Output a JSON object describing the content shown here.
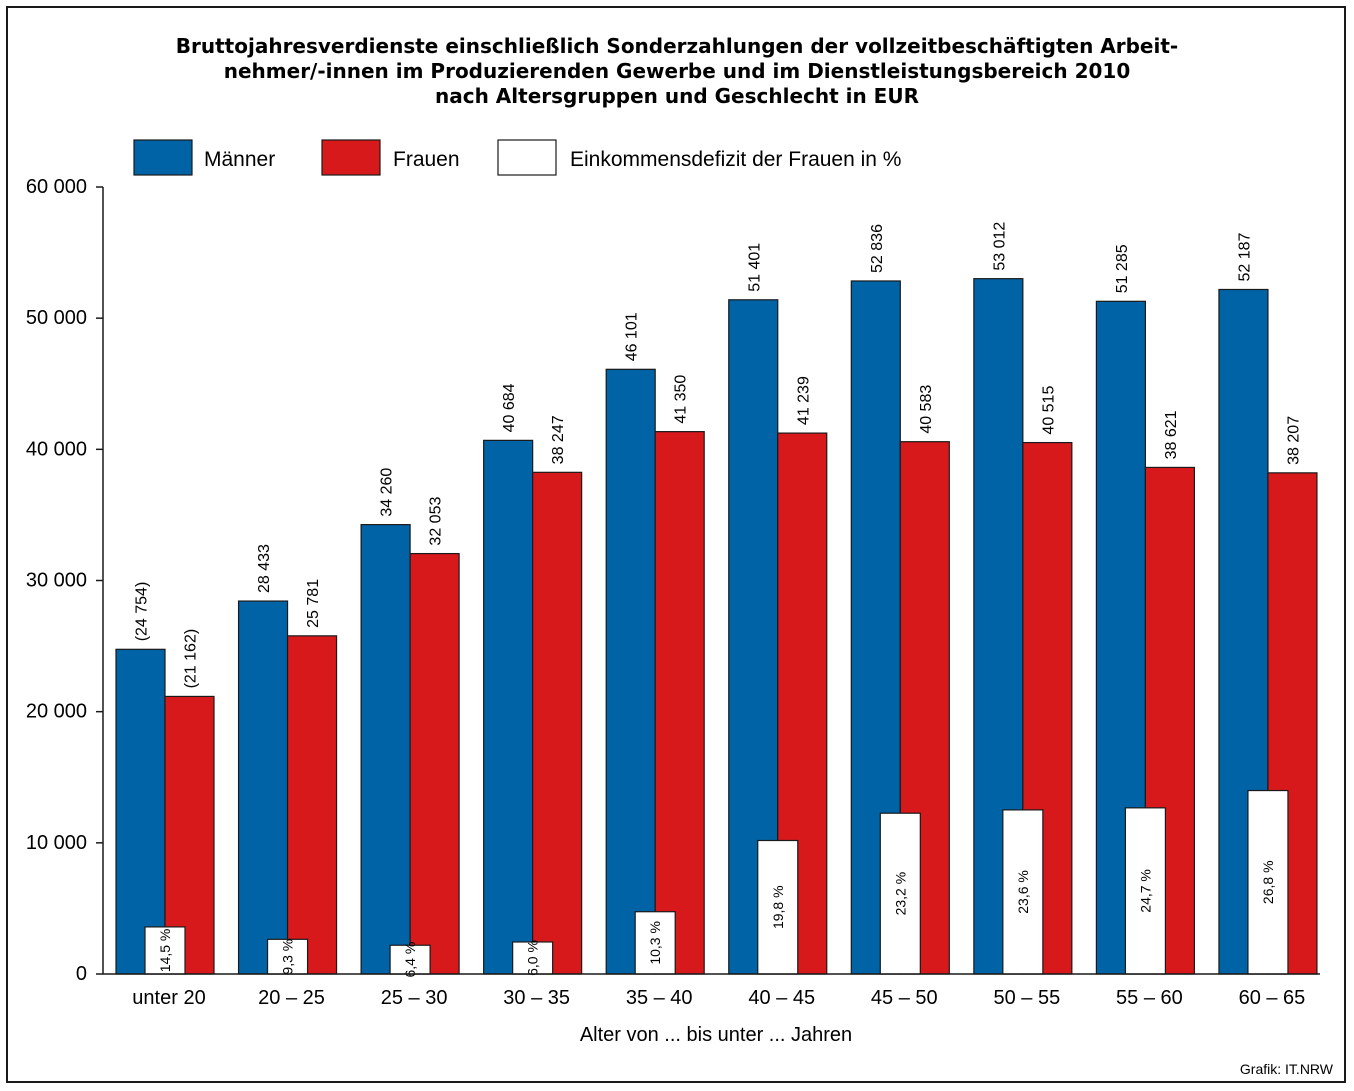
{
  "chart_data": {
    "type": "bar",
    "title_lines": [
      "Bruttojahresverdienste einschließlich Sonderzahlungen der vollzeitbeschäftigten Arbeit-",
      "nehmer/-innen im Produzierenden Gewerbe und im Dienstleistungsbereich 2010",
      "nach Altersgruppen und Geschlecht in EUR"
    ],
    "xlabel": "Alter von ... bis unter ... Jahren",
    "ylabel": "",
    "ylim": [
      0,
      60000
    ],
    "y_ticks": [
      0,
      10000,
      20000,
      30000,
      40000,
      50000,
      60000
    ],
    "y_tick_labels": [
      "0",
      "10 000",
      "20 000",
      "30 000",
      "40 000",
      "50 000",
      "60 000"
    ],
    "categories": [
      "unter 20",
      "20 – 25",
      "25 – 30",
      "30 – 35",
      "35 – 40",
      "40 – 45",
      "45 – 50",
      "50 – 55",
      "55 – 60",
      "60 – 65"
    ],
    "series": [
      {
        "name": "Männer",
        "color": "#0063a6",
        "values": [
          24754,
          28433,
          34260,
          40684,
          46101,
          51401,
          52836,
          53012,
          51285,
          52187
        ],
        "labels": [
          "(24 754)",
          "28 433",
          "34 260",
          "40 684",
          "46 101",
          "51 401",
          "52 836",
          "53 012",
          "51 285",
          "52 187"
        ]
      },
      {
        "name": "Frauen",
        "color": "#d7191c",
        "values": [
          21162,
          25781,
          32053,
          38247,
          41350,
          41239,
          40583,
          40515,
          38621,
          38207
        ],
        "labels": [
          "(21 162)",
          "25 781",
          "32 053",
          "38 247",
          "41 350",
          "41 239",
          "40 583",
          "40 515",
          "38 621",
          "38 207"
        ]
      },
      {
        "name": "Einkommensdefizit der Frauen in %",
        "color": "#ffffff",
        "values": [
          14.5,
          9.3,
          6.4,
          6.0,
          10.3,
          19.8,
          23.2,
          23.6,
          24.7,
          26.8
        ],
        "labels": [
          "14,5 %",
          "9,3 %",
          "6,4 %",
          "6,0 %",
          "10,3 %",
          "19,8 %",
          "23,2 %",
          "23,6 %",
          "24,7 %",
          "26,8 %"
        ]
      }
    ],
    "legend_position": "top",
    "grid": false,
    "source": "Grafik: IT.NRW"
  }
}
